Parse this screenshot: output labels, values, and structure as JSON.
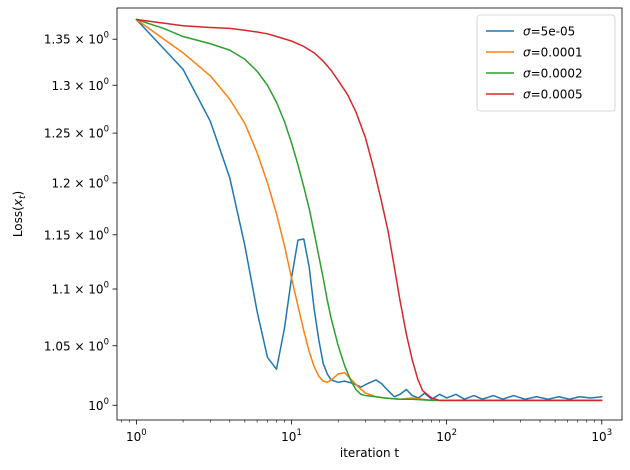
{
  "chart_data": {
    "type": "line",
    "title": "",
    "xlabel": "iteration t",
    "ylabel": "Loss(x_t)",
    "xscale": "log",
    "yscale": "log",
    "xlim": [
      0.75,
      1350
    ],
    "ylim": [
      0.988,
      1.385
    ],
    "grid": false,
    "legend_position": "top-right",
    "x_ticks": [
      {
        "value": 1,
        "label": "10^0"
      },
      {
        "value": 10,
        "label": "10^1"
      },
      {
        "value": 100,
        "label": "10^2"
      },
      {
        "value": 1000,
        "label": "10^3"
      }
    ],
    "y_ticks": [
      {
        "value": 1.0,
        "label": "10^0"
      },
      {
        "value": 1.05,
        "label": "1.05 × 10^0"
      },
      {
        "value": 1.1,
        "label": "1.1 × 10^0"
      },
      {
        "value": 1.15,
        "label": "1.15 × 10^0"
      },
      {
        "value": 1.2,
        "label": "1.2 × 10^0"
      },
      {
        "value": 1.25,
        "label": "1.25 × 10^0"
      },
      {
        "value": 1.3,
        "label": "1.3 × 10^0"
      },
      {
        "value": 1.35,
        "label": "1.35 × 10^0"
      }
    ],
    "series": [
      {
        "name": "σ=5e-05",
        "color": "#1f77b4",
        "points": [
          [
            1,
            1.372
          ],
          [
            2,
            1.317
          ],
          [
            3,
            1.262
          ],
          [
            4,
            1.205
          ],
          [
            5,
            1.14
          ],
          [
            6,
            1.08
          ],
          [
            7,
            1.04
          ],
          [
            8,
            1.03
          ],
          [
            9,
            1.065
          ],
          [
            10,
            1.11
          ],
          [
            11,
            1.145
          ],
          [
            12,
            1.146
          ],
          [
            13,
            1.12
          ],
          [
            14,
            1.082
          ],
          [
            15,
            1.055
          ],
          [
            16,
            1.035
          ],
          [
            17,
            1.026
          ],
          [
            18,
            1.021
          ],
          [
            20,
            1.019
          ],
          [
            22,
            1.02
          ],
          [
            25,
            1.018
          ],
          [
            28,
            1.015
          ],
          [
            31,
            1.018
          ],
          [
            35,
            1.021
          ],
          [
            38,
            1.018
          ],
          [
            42,
            1.012
          ],
          [
            46,
            1.007
          ],
          [
            50,
            1.009
          ],
          [
            55,
            1.013
          ],
          [
            60,
            1.008
          ],
          [
            66,
            1.006
          ],
          [
            72,
            1.01
          ],
          [
            80,
            1.005
          ],
          [
            90,
            1.009
          ],
          [
            100,
            1.006
          ],
          [
            115,
            1.009
          ],
          [
            130,
            1.005
          ],
          [
            150,
            1.008
          ],
          [
            170,
            1.005
          ],
          [
            200,
            1.008
          ],
          [
            230,
            1.005
          ],
          [
            270,
            1.008
          ],
          [
            320,
            1.005
          ],
          [
            380,
            1.007
          ],
          [
            450,
            1.005
          ],
          [
            530,
            1.007
          ],
          [
            620,
            1.005
          ],
          [
            720,
            1.007
          ],
          [
            850,
            1.006
          ],
          [
            1000,
            1.007
          ]
        ]
      },
      {
        "name": "σ=0.0001",
        "color": "#ff7f0e",
        "points": [
          [
            1,
            1.372
          ],
          [
            2,
            1.335
          ],
          [
            3,
            1.31
          ],
          [
            4,
            1.285
          ],
          [
            5,
            1.26
          ],
          [
            6,
            1.23
          ],
          [
            7,
            1.2
          ],
          [
            8,
            1.17
          ],
          [
            9,
            1.14
          ],
          [
            10,
            1.11
          ],
          [
            11,
            1.085
          ],
          [
            12,
            1.063
          ],
          [
            13,
            1.045
          ],
          [
            14,
            1.032
          ],
          [
            15,
            1.024
          ],
          [
            16,
            1.02
          ],
          [
            17,
            1.019
          ],
          [
            18,
            1.021
          ],
          [
            20,
            1.026
          ],
          [
            22,
            1.027
          ],
          [
            24,
            1.022
          ],
          [
            27,
            1.015
          ],
          [
            30,
            1.01
          ],
          [
            35,
            1.007
          ],
          [
            40,
            1.006
          ],
          [
            50,
            1.005
          ],
          [
            60,
            1.006
          ],
          [
            70,
            1.005
          ],
          [
            80,
            1.004
          ],
          [
            100,
            1.004
          ],
          [
            150,
            1.004
          ],
          [
            200,
            1.004
          ],
          [
            300,
            1.004
          ],
          [
            500,
            1.004
          ],
          [
            1000,
            1.004
          ]
        ]
      },
      {
        "name": "σ=0.0002",
        "color": "#2ca02c",
        "points": [
          [
            1,
            1.372
          ],
          [
            1.5,
            1.362
          ],
          [
            2,
            1.353
          ],
          [
            3,
            1.345
          ],
          [
            4,
            1.338
          ],
          [
            5,
            1.328
          ],
          [
            6,
            1.315
          ],
          [
            7,
            1.3
          ],
          [
            8,
            1.282
          ],
          [
            9,
            1.262
          ],
          [
            10,
            1.24
          ],
          [
            11,
            1.218
          ],
          [
            12,
            1.196
          ],
          [
            13,
            1.175
          ],
          [
            14,
            1.152
          ],
          [
            15,
            1.13
          ],
          [
            16,
            1.11
          ],
          [
            17,
            1.09
          ],
          [
            18,
            1.074
          ],
          [
            20,
            1.05
          ],
          [
            22,
            1.033
          ],
          [
            24,
            1.021
          ],
          [
            26,
            1.013
          ],
          [
            28,
            1.009
          ],
          [
            30,
            1.008
          ],
          [
            35,
            1.007
          ],
          [
            40,
            1.006
          ],
          [
            50,
            1.005
          ],
          [
            60,
            1.005
          ],
          [
            80,
            1.004
          ],
          [
            100,
            1.004
          ],
          [
            200,
            1.004
          ],
          [
            500,
            1.004
          ],
          [
            1000,
            1.004
          ]
        ]
      },
      {
        "name": "σ=0.0005",
        "color": "#d62728",
        "points": [
          [
            1,
            1.372
          ],
          [
            2,
            1.365
          ],
          [
            3,
            1.363
          ],
          [
            4,
            1.362
          ],
          [
            5,
            1.36
          ],
          [
            6,
            1.358
          ],
          [
            7,
            1.356
          ],
          [
            8,
            1.353
          ],
          [
            10,
            1.348
          ],
          [
            12,
            1.342
          ],
          [
            14,
            1.335
          ],
          [
            16,
            1.326
          ],
          [
            18,
            1.316
          ],
          [
            20,
            1.305
          ],
          [
            23,
            1.29
          ],
          [
            26,
            1.272
          ],
          [
            30,
            1.245
          ],
          [
            34,
            1.213
          ],
          [
            38,
            1.182
          ],
          [
            42,
            1.153
          ],
          [
            46,
            1.12
          ],
          [
            50,
            1.09
          ],
          [
            55,
            1.06
          ],
          [
            60,
            1.038
          ],
          [
            65,
            1.022
          ],
          [
            70,
            1.012
          ],
          [
            80,
            1.006
          ],
          [
            90,
            1.004
          ],
          [
            100,
            1.004
          ],
          [
            150,
            1.004
          ],
          [
            200,
            1.004
          ],
          [
            300,
            1.004
          ],
          [
            500,
            1.004
          ],
          [
            1000,
            1.004
          ]
        ]
      }
    ]
  }
}
